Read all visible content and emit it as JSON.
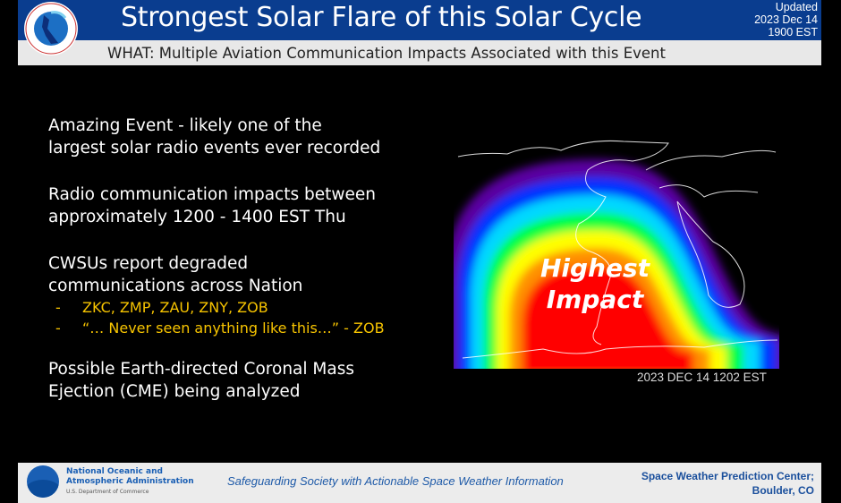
{
  "header": {
    "title": "Strongest Solar Flare of this Solar Cycle",
    "updated_label": "Updated",
    "updated_date": "2023 Dec 14",
    "updated_time": "1900 EST",
    "subtitle": "WHAT: Multiple Aviation Communication Impacts Associated with this Event",
    "logo_text": "NATIONAL WEATHER SERVICE"
  },
  "body": {
    "p1": [
      "Amazing Event - likely one of the",
      "largest solar radio events ever recorded"
    ],
    "p2": [
      "Radio communication impacts between",
      "approximately 1200 - 1400 EST Thu"
    ],
    "p3": [
      "CWSUs report degraded",
      "communications across Nation"
    ],
    "bullets": [
      {
        "dash": "-",
        "text": "ZKC, ZMP, ZAU, ZNY, ZOB"
      },
      {
        "dash": "-",
        "text": "“… Never seen anything like this…” - ZOB"
      }
    ],
    "p4": [
      "Possible Earth-directed Coronal Mass",
      "Ejection (CME) being analyzed"
    ]
  },
  "map": {
    "label1": "Highest",
    "label2": "Impact",
    "caption": "2023 DEC 14 1202 EST",
    "colors": [
      "#5a00a0",
      "#0030ff",
      "#00d8ff",
      "#00ff40",
      "#ffff00",
      "#ff9000",
      "#ff0000"
    ]
  },
  "footer": {
    "org1": "National Oceanic and",
    "org2": "Atmospheric Administration",
    "dept": "U.S. Department of Commerce",
    "slogan": "Safeguarding Society with Actionable Space Weather Information",
    "center1": "Space Weather Prediction Center;",
    "center2": "Boulder, CO"
  }
}
